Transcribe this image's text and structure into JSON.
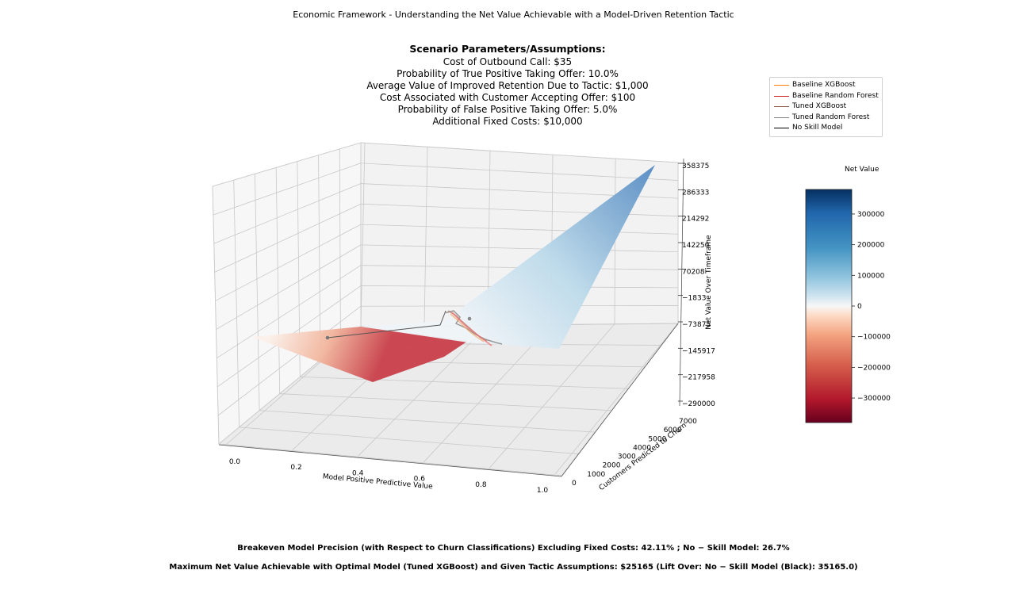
{
  "figure_title": "Economic Framework - Understanding the Net Value Achievable with a Model-Driven Retention Tactic",
  "scenario": {
    "heading": "Scenario Parameters/Assumptions:",
    "lines": [
      "Cost of Outbound Call: $35",
      "Probability of True Positive Taking Offer: 10.0%",
      "Average Value of Improved Retention Due to Tactic: $1,000",
      "Cost Associated with Customer Accepting Offer: $100",
      "Probability of False Positive Taking Offer: 5.0%",
      "Additional Fixed Costs: $10,000"
    ]
  },
  "legend": [
    {
      "label": "Baseline XGBoost",
      "color": "#ff7f0e"
    },
    {
      "label": "Baseline Random Forest",
      "color": "#d62728"
    },
    {
      "label": "Tuned XGBoost",
      "color": "#8c564b"
    },
    {
      "label": "Tuned Random Forest",
      "color": "#7f7f7f"
    },
    {
      "label": "No Skill Model",
      "color": "#000000"
    }
  ],
  "colorbar": {
    "title": "Net Value",
    "ticks": [
      "300000",
      "200000",
      "100000",
      "0",
      "−100000",
      "−200000",
      "−300000"
    ]
  },
  "footer": {
    "line1": "Breakeven Model Precision (with Respect to Churn Classifications) Excluding Fixed Costs: 42.11% ; No − Skill Model: 26.7%",
    "line2": "Maximum Net Value Achievable with Optimal Model (Tuned XGBoost) and Given Tactic Assumptions: $25165 (Lift Over: No − Skill Model (Black): 35165.0)"
  },
  "chart_data": {
    "type": "surface3d",
    "x_axis": {
      "label": "Model Positive Predictive Value",
      "ticks": [
        "0.0",
        "0.2",
        "0.4",
        "0.6",
        "0.8",
        "1.0"
      ]
    },
    "y_axis": {
      "label": "Customers Predicted to Churn",
      "ticks": [
        "0",
        "1000",
        "2000",
        "3000",
        "4000",
        "5000",
        "6000",
        "7000"
      ]
    },
    "z_axis": {
      "label": "Net Value Over Timeframe",
      "ticks": [
        "−290000",
        "−217958",
        "−145917",
        "−73875",
        "−1833",
        "70208",
        "142250",
        "214292",
        "286333",
        "358375"
      ]
    },
    "zlim": [
      -290000,
      358375
    ],
    "surface_corners": [
      {
        "ppv": 0.0,
        "customers": 0,
        "net_value": -10000
      },
      {
        "ppv": 0.0,
        "customers": 7000,
        "net_value": -290000
      },
      {
        "ppv": 1.0,
        "customers": 0,
        "net_value": -10000
      },
      {
        "ppv": 1.0,
        "customers": 7000,
        "net_value": 358375
      }
    ],
    "colormap": "RdBu",
    "series": [
      {
        "name": "Baseline XGBoost",
        "color": "#ff7f0e"
      },
      {
        "name": "Baseline Random Forest",
        "color": "#d62728"
      },
      {
        "name": "Tuned XGBoost",
        "color": "#8c564b"
      },
      {
        "name": "Tuned Random Forest",
        "color": "#7f7f7f"
      },
      {
        "name": "No Skill Model",
        "color": "#000000"
      }
    ],
    "colorbar_range": [
      -380000,
      380000
    ]
  }
}
